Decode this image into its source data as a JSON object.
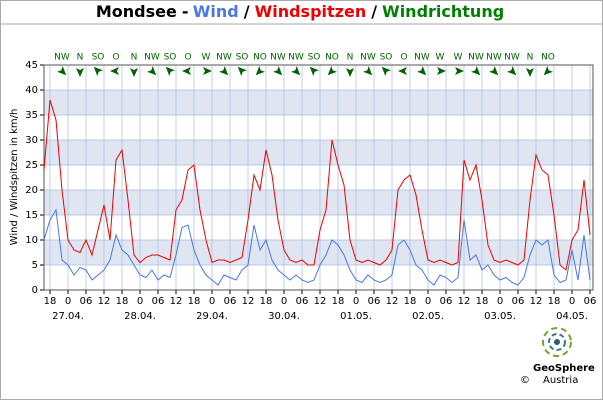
{
  "chart_data": {
    "type": "line",
    "title": "Mondsee",
    "title_separators": [
      "-",
      "/",
      "/"
    ],
    "direction_title": "Windrichtung",
    "direction_color": "#008000",
    "ylabel": "Wind / Windspitzen in km/h",
    "xlim": [
      -8,
      175
    ],
    "ylim": [
      0,
      45
    ],
    "yticks": [
      0,
      5,
      10,
      15,
      20,
      25,
      30,
      35,
      40,
      45
    ],
    "xticks": [
      {
        "value": -6,
        "label": "18"
      },
      0,
      {
        "value": 6,
        "label": "06"
      },
      12,
      18,
      {
        "value": 24,
        "label": "0"
      },
      {
        "value": 30,
        "label": "06"
      },
      {
        "value": 36,
        "label": "12"
      },
      {
        "value": 42,
        "label": "18"
      },
      {
        "value": 48,
        "label": "0"
      },
      {
        "value": 54,
        "label": "06"
      },
      {
        "value": 60,
        "label": "12"
      },
      {
        "value": 66,
        "label": "18"
      },
      {
        "value": 72,
        "label": "0"
      },
      {
        "value": 78,
        "label": "06"
      },
      {
        "value": 84,
        "label": "12"
      },
      {
        "value": 90,
        "label": "18"
      },
      {
        "value": 96,
        "label": "0"
      },
      {
        "value": 102,
        "label": "06"
      },
      {
        "value": 108,
        "label": "12"
      },
      {
        "value": 114,
        "label": "18"
      },
      {
        "value": 120,
        "label": "0"
      },
      {
        "value": 126,
        "label": "06"
      },
      {
        "value": 132,
        "label": "12"
      },
      {
        "value": 138,
        "label": "18"
      },
      {
        "value": 144,
        "label": "0"
      },
      {
        "value": 150,
        "label": "06"
      },
      {
        "value": 156,
        "label": "12"
      },
      {
        "value": 162,
        "label": "18"
      },
      {
        "value": 168,
        "label": "0"
      },
      {
        "value": 174,
        "label": "06"
      }
    ],
    "date_labels": [
      {
        "value": 0,
        "label": "27.04."
      },
      {
        "value": 24,
        "label": "28.04."
      },
      {
        "value": 48,
        "label": "29.04."
      },
      {
        "value": 72,
        "label": "30.04."
      },
      {
        "value": 96,
        "label": "01.05."
      },
      {
        "value": 120,
        "label": "02.05."
      },
      {
        "value": 144,
        "label": "03.05."
      },
      {
        "value": 168,
        "label": "04.05."
      }
    ],
    "grid": true,
    "x": [
      -8,
      -6,
      -4,
      -2,
      0,
      2,
      4,
      6,
      8,
      10,
      12,
      14,
      16,
      18,
      20,
      22,
      24,
      26,
      28,
      30,
      32,
      34,
      36,
      38,
      40,
      42,
      44,
      46,
      48,
      50,
      52,
      54,
      56,
      58,
      60,
      62,
      64,
      66,
      68,
      70,
      72,
      74,
      76,
      78,
      80,
      82,
      84,
      86,
      88,
      90,
      92,
      94,
      96,
      98,
      100,
      102,
      104,
      106,
      108,
      110,
      112,
      114,
      116,
      118,
      120,
      122,
      124,
      126,
      128,
      130,
      132,
      134,
      136,
      138,
      140,
      142,
      144,
      146,
      148,
      150,
      152,
      154,
      156,
      158,
      160,
      162,
      164,
      166,
      168,
      170,
      172,
      174
    ],
    "series": [
      {
        "name": "Wind",
        "color": "#4a78e0",
        "values": [
          10,
          14,
          16,
          6,
          5,
          3,
          4.5,
          4,
          2,
          3,
          4,
          6,
          11,
          8,
          7,
          5,
          3,
          2.5,
          4,
          2,
          3,
          2.5,
          7,
          12.5,
          13,
          8,
          5,
          3,
          2,
          1,
          3,
          2.5,
          2,
          4,
          5,
          13,
          8,
          10,
          6,
          4,
          3,
          2,
          3,
          2,
          1.5,
          2,
          5,
          7,
          10,
          9,
          7,
          4,
          2,
          1.5,
          3,
          2,
          1.5,
          2,
          3,
          9,
          10,
          8,
          5,
          4,
          2,
          1,
          3,
          2.5,
          1.5,
          2.5,
          14,
          6,
          7,
          4,
          5,
          3,
          2,
          2.5,
          1.5,
          1,
          2.5,
          7,
          10,
          9,
          10,
          3,
          1.5,
          2,
          8,
          2,
          11,
          2
        ]
      },
      {
        "name": "Windspitzen",
        "color": "#ee0000",
        "values": [
          24,
          38,
          34,
          20,
          10,
          8,
          7.5,
          10,
          7,
          12,
          17,
          10,
          26,
          28,
          18,
          7,
          5.5,
          6.5,
          7,
          7,
          6.5,
          6,
          16,
          18,
          24,
          25,
          16,
          10,
          5.5,
          6,
          6,
          5.5,
          6,
          6.5,
          14,
          23,
          20,
          28,
          23,
          14,
          8,
          6,
          5.5,
          6,
          5,
          5,
          12,
          16,
          30,
          25,
          21,
          10,
          6,
          5.5,
          6,
          5.5,
          5,
          6,
          8,
          20,
          22,
          23,
          19,
          12,
          6,
          5.5,
          6,
          5.5,
          5,
          5.5,
          26,
          22,
          25,
          18,
          9,
          6,
          5.5,
          6,
          5.5,
          5,
          6,
          18,
          27,
          24,
          23,
          15,
          5,
          4,
          10,
          12,
          22,
          11
        ]
      }
    ],
    "wind_direction": [
      {
        "x": -2,
        "label": "NW",
        "deg": 315
      },
      {
        "x": 4,
        "label": "N",
        "deg": 0
      },
      {
        "x": 10,
        "label": "SO",
        "deg": 135
      },
      {
        "x": 16,
        "label": "O",
        "deg": 90
      },
      {
        "x": 22,
        "label": "N",
        "deg": 0
      },
      {
        "x": 28,
        "label": "NW",
        "deg": 315
      },
      {
        "x": 34,
        "label": "SO",
        "deg": 135
      },
      {
        "x": 40,
        "label": "O",
        "deg": 90
      },
      {
        "x": 46,
        "label": "W",
        "deg": 270
      },
      {
        "x": 52,
        "label": "NW",
        "deg": 315
      },
      {
        "x": 58,
        "label": "SO",
        "deg": 135
      },
      {
        "x": 64,
        "label": "NO",
        "deg": 45
      },
      {
        "x": 70,
        "label": "NW",
        "deg": 315
      },
      {
        "x": 76,
        "label": "NW",
        "deg": 315
      },
      {
        "x": 82,
        "label": "SO",
        "deg": 135
      },
      {
        "x": 88,
        "label": "NO",
        "deg": 45
      },
      {
        "x": 94,
        "label": "N",
        "deg": 0
      },
      {
        "x": 100,
        "label": "NW",
        "deg": 315
      },
      {
        "x": 106,
        "label": "SO",
        "deg": 135
      },
      {
        "x": 112,
        "label": "O",
        "deg": 90
      },
      {
        "x": 118,
        "label": "NW",
        "deg": 315
      },
      {
        "x": 124,
        "label": "W",
        "deg": 270
      },
      {
        "x": 130,
        "label": "W",
        "deg": 270
      },
      {
        "x": 136,
        "label": "NW",
        "deg": 315
      },
      {
        "x": 142,
        "label": "NW",
        "deg": 315
      },
      {
        "x": 148,
        "label": "NW",
        "deg": 315
      },
      {
        "x": 154,
        "label": "N",
        "deg": 0
      },
      {
        "x": 160,
        "label": "NO",
        "deg": 45
      }
    ],
    "logo": {
      "name": "GeoSphere",
      "sub": "Austria"
    },
    "copyright": "©"
  }
}
